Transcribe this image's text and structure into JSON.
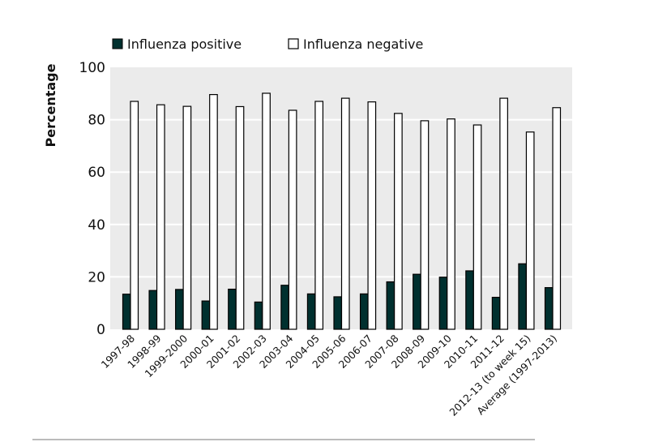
{
  "chart_data": {
    "type": "bar",
    "title": "",
    "xlabel": "",
    "ylabel": "Percentage",
    "ylim": [
      0,
      100
    ],
    "yticks": [
      0,
      20,
      40,
      60,
      80,
      100
    ],
    "grid": true,
    "legend_position": "top-left",
    "categories": [
      "1997-98",
      "1998-99",
      "1999-2000",
      "2000-01",
      "2001-02",
      "2002-03",
      "2003-04",
      "2004-05",
      "2005-06",
      "2006-07",
      "2007-08",
      "2008-09",
      "2009-10",
      "2010-11",
      "2011-12",
      "2012-13 (to week 15)",
      "Average (1997-2013)"
    ],
    "series": [
      {
        "name": "Influenza positive",
        "color": "#00302f",
        "values": [
          13.4,
          14.8,
          15.2,
          10.8,
          15.3,
          10.4,
          16.8,
          13.5,
          12.4,
          13.5,
          18.1,
          21.0,
          19.9,
          22.3,
          12.2,
          25.0,
          15.9
        ]
      },
      {
        "name": "Influenza negative",
        "color": "#ffffff",
        "values": [
          87.0,
          85.7,
          85.1,
          89.6,
          85.0,
          90.1,
          83.6,
          87.0,
          88.2,
          86.8,
          82.4,
          79.6,
          80.3,
          78.0,
          88.2,
          75.3,
          84.6
        ]
      }
    ]
  }
}
